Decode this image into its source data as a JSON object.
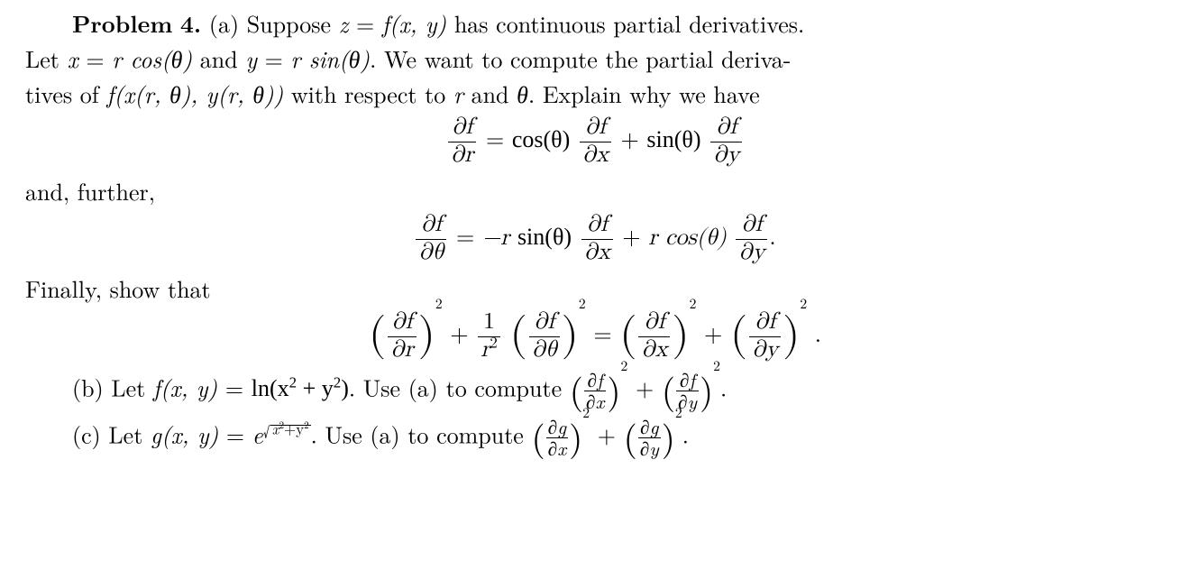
{
  "problem_label": "Problem",
  "problem_number": "4.",
  "part_a_open": "(a) Suppose ",
  "eq_z": "z",
  "eq_eq": " = ",
  "fxy": "f(x, y)",
  "cont_text": " has continuous partial derivatives.",
  "line2a": "Let ",
  "x": "x",
  "eq": " = ",
  "rcos": "r cos(θ)",
  "and": " and ",
  "y": "y",
  "rsin": "r sin(θ)",
  "line2b": ".  We want to compute the partial deriva-",
  "line3a": "tives of ",
  "fxry": "f(x(r, θ), y(r, θ))",
  "line3b": " with respect to ",
  "r": "r",
  "line3c": " and ",
  "theta": "θ",
  "line3d": ".  Explain why we have",
  "df": "∂f",
  "dr": "∂r",
  "dth": "∂θ",
  "dx": "∂x",
  "dy": "∂y",
  "cos": "cos(θ)",
  "sin": "sin(θ)",
  "plus": " + ",
  "and_further": "and, further,",
  "minus_r": "−r ",
  "rcos_plain": "r cos(θ)",
  "rsin_plain": "r sin(θ)",
  "period": ".",
  "finally": "Finally, show that",
  "one": "1",
  "r2": "r",
  "two": "2",
  "sq": "2",
  "part_b": "(b) Let ",
  "fxy_eq": "f(x, y)",
  "ln": "ln(x",
  "plus_y2": " + y",
  "close_p": ")",
  "use_a": ".  Use (a) to compute ",
  "part_c": "(c) Let ",
  "gxy": "g(x, y)",
  "e": "e",
  "x2y2": "x",
  "plus_s": "+y",
  "dg": "∂g"
}
